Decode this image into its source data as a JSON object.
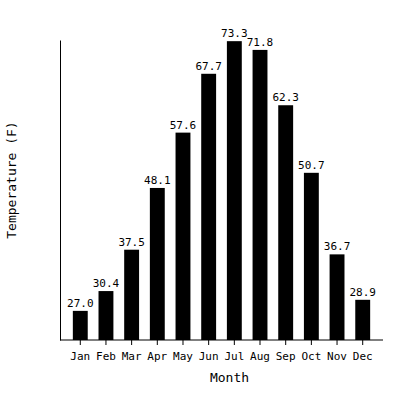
{
  "chart_data": {
    "type": "bar",
    "x_label": "Month",
    "y_label": "Temperature (F)",
    "categories": [
      "Jan",
      "Feb",
      "Mar",
      "Apr",
      "May",
      "Jun",
      "Jul",
      "Aug",
      "Sep",
      "Oct",
      "Nov",
      "Dec"
    ],
    "values": [
      27.0,
      30.4,
      37.5,
      48.1,
      57.6,
      67.7,
      73.3,
      71.8,
      62.3,
      50.7,
      36.7,
      28.9
    ],
    "value_labels": [
      "27.0",
      "30.4",
      "37.5",
      "48.1",
      "57.6",
      "67.7",
      "73.3",
      "71.8",
      "62.3",
      "50.7",
      "36.7",
      "28.9"
    ],
    "color": "#000000",
    "ylim": [
      22,
      73.5
    ],
    "yticks": [],
    "grid": false,
    "data_labels": true,
    "tick_labels": "x"
  }
}
